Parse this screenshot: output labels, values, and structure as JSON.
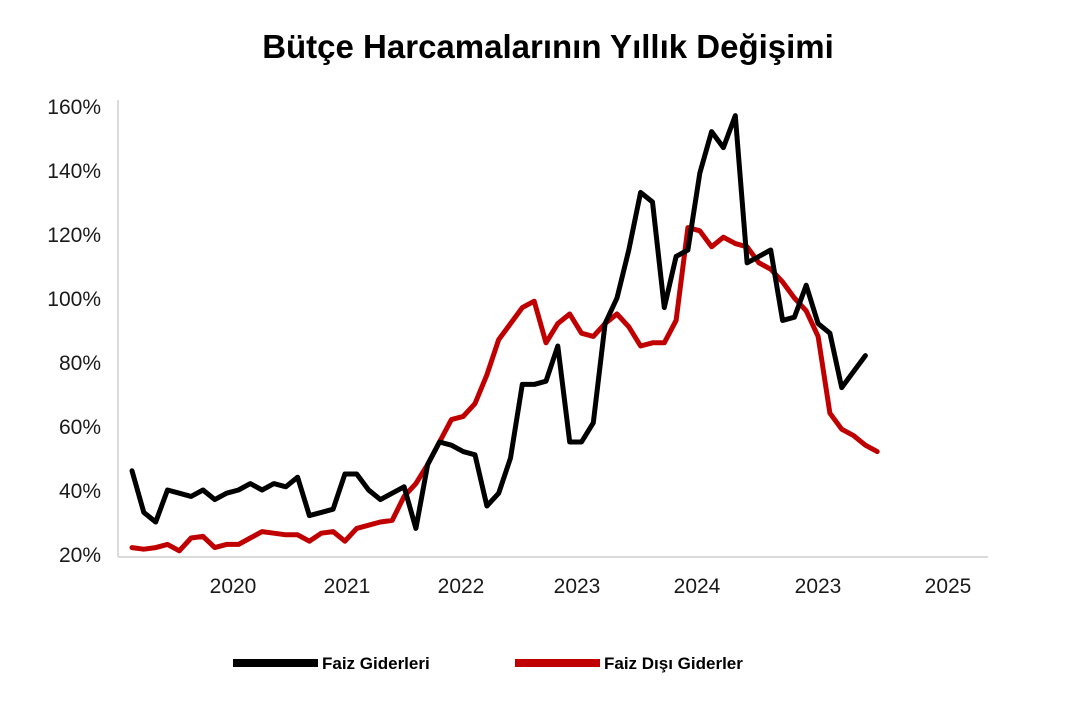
{
  "chart_data": {
    "type": "line",
    "title": "Bütçe Harcamalarının Yıllık Değişimi",
    "xlabel": "",
    "ylabel": "",
    "ylim": [
      20,
      160
    ],
    "x_tick_labels": [
      "2020",
      "2021",
      "2022",
      "2023",
      "2024",
      "2023",
      "2025"
    ],
    "y_tick_labels": [
      "20%",
      "40%",
      "60%",
      "80%",
      "100%",
      "120%",
      "140%",
      "160%"
    ],
    "y_ticks": [
      20,
      40,
      60,
      80,
      100,
      120,
      140,
      160
    ],
    "grid": false,
    "legend_position": "bottom",
    "colors": {
      "faiz": "#000000",
      "faiz_disi": "#c00000",
      "axis": "#cccccc"
    },
    "x": [
      1,
      2,
      3,
      4,
      5,
      6,
      7,
      8,
      9,
      10,
      11,
      12,
      13,
      14,
      15,
      16,
      17,
      18,
      19,
      20,
      21,
      22,
      23,
      24,
      25,
      26,
      27,
      28,
      29,
      30,
      31,
      32,
      33,
      34,
      35,
      36,
      37,
      38,
      39,
      40,
      41,
      42,
      43,
      44,
      45,
      46,
      47,
      48,
      49,
      50,
      51,
      52,
      53,
      54,
      55,
      56,
      57,
      58,
      59,
      60,
      61,
      62,
      63,
      64,
      65,
      66,
      67,
      68,
      69,
      70,
      71
    ],
    "series": [
      {
        "name": "Faiz Giderleri",
        "color": "#000000",
        "values": [
          46,
          33,
          30,
          40,
          39,
          38,
          40,
          37,
          39,
          40,
          42,
          40,
          42,
          41,
          44,
          32,
          33,
          34,
          45,
          45,
          40,
          37,
          39,
          41,
          28,
          48,
          55,
          54,
          52,
          51,
          35,
          39,
          50,
          73,
          73,
          74,
          85,
          55,
          55,
          61,
          92,
          100,
          115,
          133,
          130,
          97,
          113,
          115,
          139,
          152,
          147,
          157,
          111,
          113,
          115,
          93,
          94,
          104,
          92,
          89,
          72,
          77,
          82,
          null,
          null,
          null,
          null,
          null,
          null,
          null,
          null
        ]
      },
      {
        "name": "Faiz Dışı Giderler",
        "color": "#c00000",
        "values": [
          22,
          21.5,
          22,
          23,
          21,
          25,
          25.5,
          22,
          23,
          23,
          25,
          27,
          26.5,
          26,
          26,
          24,
          26.5,
          27,
          24,
          28,
          29,
          30,
          30.5,
          38,
          42,
          48,
          55,
          62,
          63,
          67,
          76,
          87,
          92,
          97,
          99,
          86,
          92,
          95,
          89,
          88,
          92,
          95,
          91,
          85,
          86,
          86,
          93,
          122,
          121,
          116,
          119,
          117,
          116,
          111,
          109,
          105,
          100,
          96,
          88,
          64,
          59,
          57,
          54,
          52,
          null,
          null,
          null,
          null,
          null,
          null,
          null
        ]
      }
    ]
  }
}
